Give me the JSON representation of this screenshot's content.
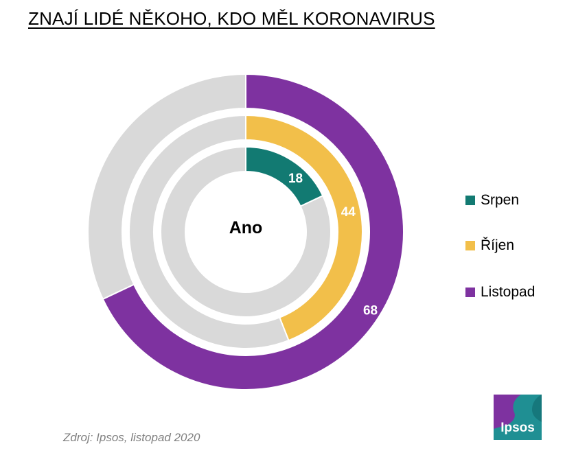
{
  "title": "ZNAJÍ LIDÉ NĚKOHO, KDO MĚL KORONAVIRUS",
  "source": "Zdroj: Ipsos, listopad 2020",
  "logo_text": "Ipsos",
  "colors": {
    "remainder": "#d9d9d9",
    "logo": "#1f8f93"
  },
  "chart_data": {
    "type": "doughnut",
    "center_label": "Ano",
    "total": 100,
    "legend_position": "right",
    "series": [
      {
        "name": "Srpen",
        "value": 18,
        "color": "#127a72"
      },
      {
        "name": "Říjen",
        "value": 44,
        "color": "#f2bf4a"
      },
      {
        "name": "Listopad",
        "value": 68,
        "color": "#7e32a0"
      }
    ]
  }
}
